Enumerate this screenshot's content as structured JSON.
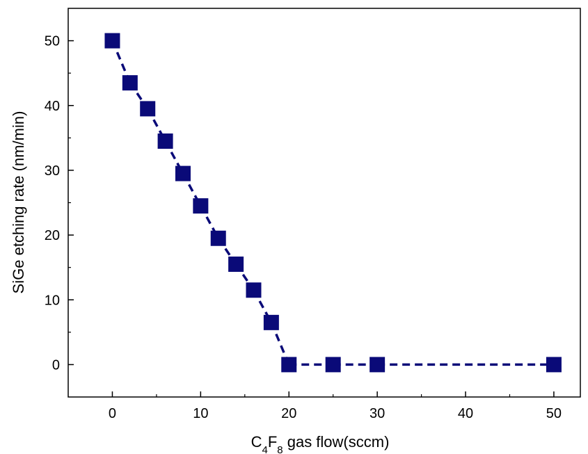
{
  "chart_data": {
    "type": "line",
    "title": "",
    "xlabel": {
      "parts": [
        {
          "text": "C",
          "sub": false
        },
        {
          "text": "4",
          "sub": true
        },
        {
          "text": "F",
          "sub": false
        },
        {
          "text": "8",
          "sub": true
        },
        {
          "text": " gas flow(sccm)",
          "sub": false
        }
      ]
    },
    "ylabel": "SiGe etching rate (nm/min)",
    "xlim": [
      -5,
      53
    ],
    "ylim": [
      -5,
      55
    ],
    "xticks": [
      0,
      10,
      20,
      30,
      40,
      50
    ],
    "yticks": [
      0,
      10,
      20,
      30,
      40,
      50
    ],
    "grid": false,
    "series": [
      {
        "color": "#0a0a78",
        "marker": "square",
        "line_style": "dashed",
        "x": [
          0,
          2,
          4,
          6,
          8,
          10,
          12,
          14,
          16,
          18,
          20,
          25,
          30,
          50
        ],
        "y": [
          50,
          43.5,
          39.5,
          34.5,
          29.5,
          24.5,
          19.5,
          15.5,
          11.5,
          6.5,
          0,
          0,
          0,
          0
        ]
      }
    ]
  }
}
